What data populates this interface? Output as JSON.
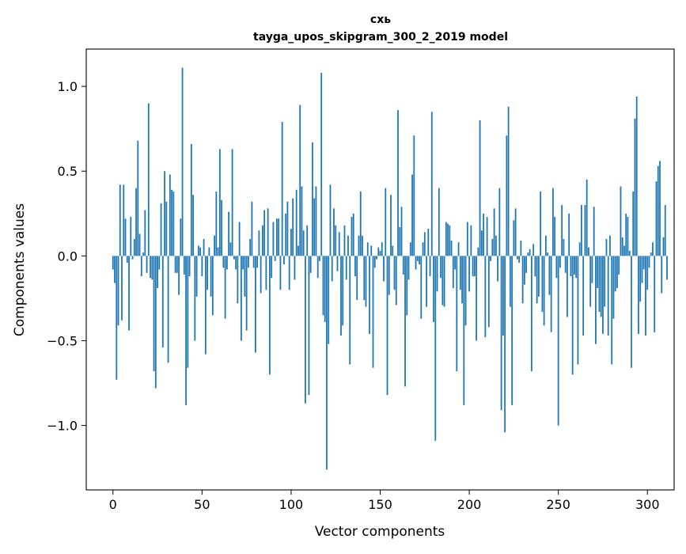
{
  "chart_data": {
    "type": "bar",
    "title_line1": "схь",
    "title_line2": "tayga_upos_skipgram_300_2_2019 model",
    "xlabel": "Vector components",
    "ylabel": "Components values",
    "xlim": [
      -15,
      315
    ],
    "ylim": [
      -1.38,
      1.22
    ],
    "xticks": [
      {
        "value": 0,
        "label": "0"
      },
      {
        "value": 50,
        "label": "50"
      },
      {
        "value": 100,
        "label": "100"
      },
      {
        "value": 150,
        "label": "150"
      },
      {
        "value": 200,
        "label": "200"
      },
      {
        "value": 250,
        "label": "250"
      },
      {
        "value": 300,
        "label": "300"
      }
    ],
    "yticks": [
      {
        "value": -1.0,
        "label": "−1.0"
      },
      {
        "value": -0.5,
        "label": "−0.5"
      },
      {
        "value": 0.0,
        "label": "0.0"
      },
      {
        "value": 0.5,
        "label": "0.5"
      },
      {
        "value": 1.0,
        "label": "1.0"
      }
    ],
    "bar_color": "#1f77b4",
    "grid": false,
    "values": [
      -0.08,
      -0.16,
      -0.73,
      -0.41,
      0.42,
      -0.38,
      0.42,
      0.22,
      -0.04,
      -0.44,
      0.23,
      -0.02,
      0.1,
      0.4,
      0.68,
      0.13,
      -0.12,
      0.02,
      0.27,
      -0.1,
      0.9,
      -0.13,
      -0.14,
      -0.68,
      -0.78,
      -0.19,
      -0.08,
      0.31,
      -0.54,
      0.5,
      0.32,
      -0.63,
      0.48,
      0.39,
      0.38,
      -0.1,
      -0.1,
      -0.23,
      0.22,
      1.11,
      -0.11,
      -0.88,
      -0.66,
      -0.12,
      0.66,
      0.36,
      -0.5,
      -0.24,
      0.06,
      0.05,
      -0.12,
      0.1,
      -0.58,
      -0.2,
      0.05,
      -0.24,
      -0.35,
      0.12,
      0.38,
      0.05,
      0.63,
      0.33,
      -0.07,
      -0.37,
      -0.08,
      0.26,
      0.08,
      0.63,
      -0.02,
      -0.08,
      -0.28,
      0.2,
      -0.5,
      -0.08,
      -0.24,
      -0.44,
      -0.07,
      0.1,
      0.32,
      -0.07,
      -0.57,
      -0.07,
      0.15,
      -0.22,
      0.18,
      0.27,
      -0.2,
      0.28,
      -0.7,
      -0.13,
      0.2,
      -0.03,
      0.22,
      0.22,
      -0.2,
      0.79,
      -0.05,
      0.25,
      0.32,
      -0.2,
      0.16,
      0.34,
      -0.14,
      0.39,
      0.06,
      0.89,
      0.41,
      0.15,
      -0.87,
      0.18,
      -0.82,
      -0.1,
      0.67,
      0.34,
      0.41,
      -0.13,
      -0.03,
      1.08,
      -0.35,
      -0.39,
      -1.26,
      -0.52,
      0.42,
      -0.15,
      0.28,
      0.18,
      -0.09,
      0.14,
      -0.47,
      -0.41,
      0.18,
      -0.14,
      0.12,
      -0.64,
      0.23,
      0.25,
      -0.12,
      -0.26,
      0.12,
      0.38,
      0.12,
      -0.26,
      -0.3,
      0.08,
      -0.46,
      0.06,
      -0.66,
      -0.07,
      -0.02,
      0.05,
      0.03,
      0.08,
      -0.15,
      0.4,
      -0.82,
      -0.23,
      0.36,
      0.06,
      -0.2,
      -0.29,
      0.86,
      0.17,
      0.29,
      -0.11,
      -0.77,
      -0.35,
      -0.14,
      0.08,
      0.48,
      0.71,
      -0.08,
      -0.03,
      -0.05,
      -0.37,
      0.08,
      0.14,
      -0.3,
      0.16,
      -0.12,
      0.85,
      -0.39,
      -1.09,
      -0.21,
      0.4,
      -0.13,
      -0.29,
      -0.3,
      0.2,
      0.19,
      0.18,
      0.09,
      -0.19,
      -0.08,
      -0.68,
      0.08,
      -0.2,
      -0.28,
      -0.88,
      -0.41,
      0.2,
      -0.21,
      0.18,
      -0.12,
      -0.12,
      -0.5,
      0.05,
      0.8,
      0.15,
      0.25,
      -0.48,
      0.23,
      -0.42,
      -0.03,
      0.1,
      0.28,
      0.12,
      -0.15,
      0.4,
      -0.91,
      -0.47,
      -1.04,
      0.71,
      0.88,
      -0.3,
      -0.88,
      0.21,
      0.28,
      -0.02,
      -0.04,
      0.09,
      -0.28,
      -0.17,
      -0.1,
      0.02,
      0.04,
      -0.68,
      0.07,
      -0.12,
      -0.28,
      -0.24,
      0.38,
      -0.33,
      -0.41,
      0.12,
      0.02,
      -0.23,
      -0.45,
      0.4,
      0.23,
      -0.13,
      -1.0,
      -0.07,
      0.3,
      0.1,
      -0.1,
      -0.36,
      0.25,
      -0.12,
      -0.7,
      -0.11,
      -0.13,
      -0.64,
      0.08,
      0.3,
      -0.47,
      0.3,
      0.45,
      0.05,
      -0.3,
      -0.16,
      0.29,
      -0.52,
      -0.19,
      -0.33,
      -0.36,
      -0.46,
      -0.3,
      0.1,
      -0.47,
      0.12,
      -0.64,
      -0.37,
      -0.21,
      -0.19,
      -0.11,
      0.41,
      0.11,
      0.06,
      0.25,
      0.23,
      0.03,
      -0.66,
      0.38,
      0.81,
      0.94,
      -0.46,
      -0.27,
      -0.16,
      -0.08,
      -0.47,
      -0.2,
      -0.07,
      0.02,
      0.08,
      -0.45,
      0.44,
      0.53,
      0.56,
      -0.22,
      0.11,
      0.3,
      -0.14
    ]
  }
}
